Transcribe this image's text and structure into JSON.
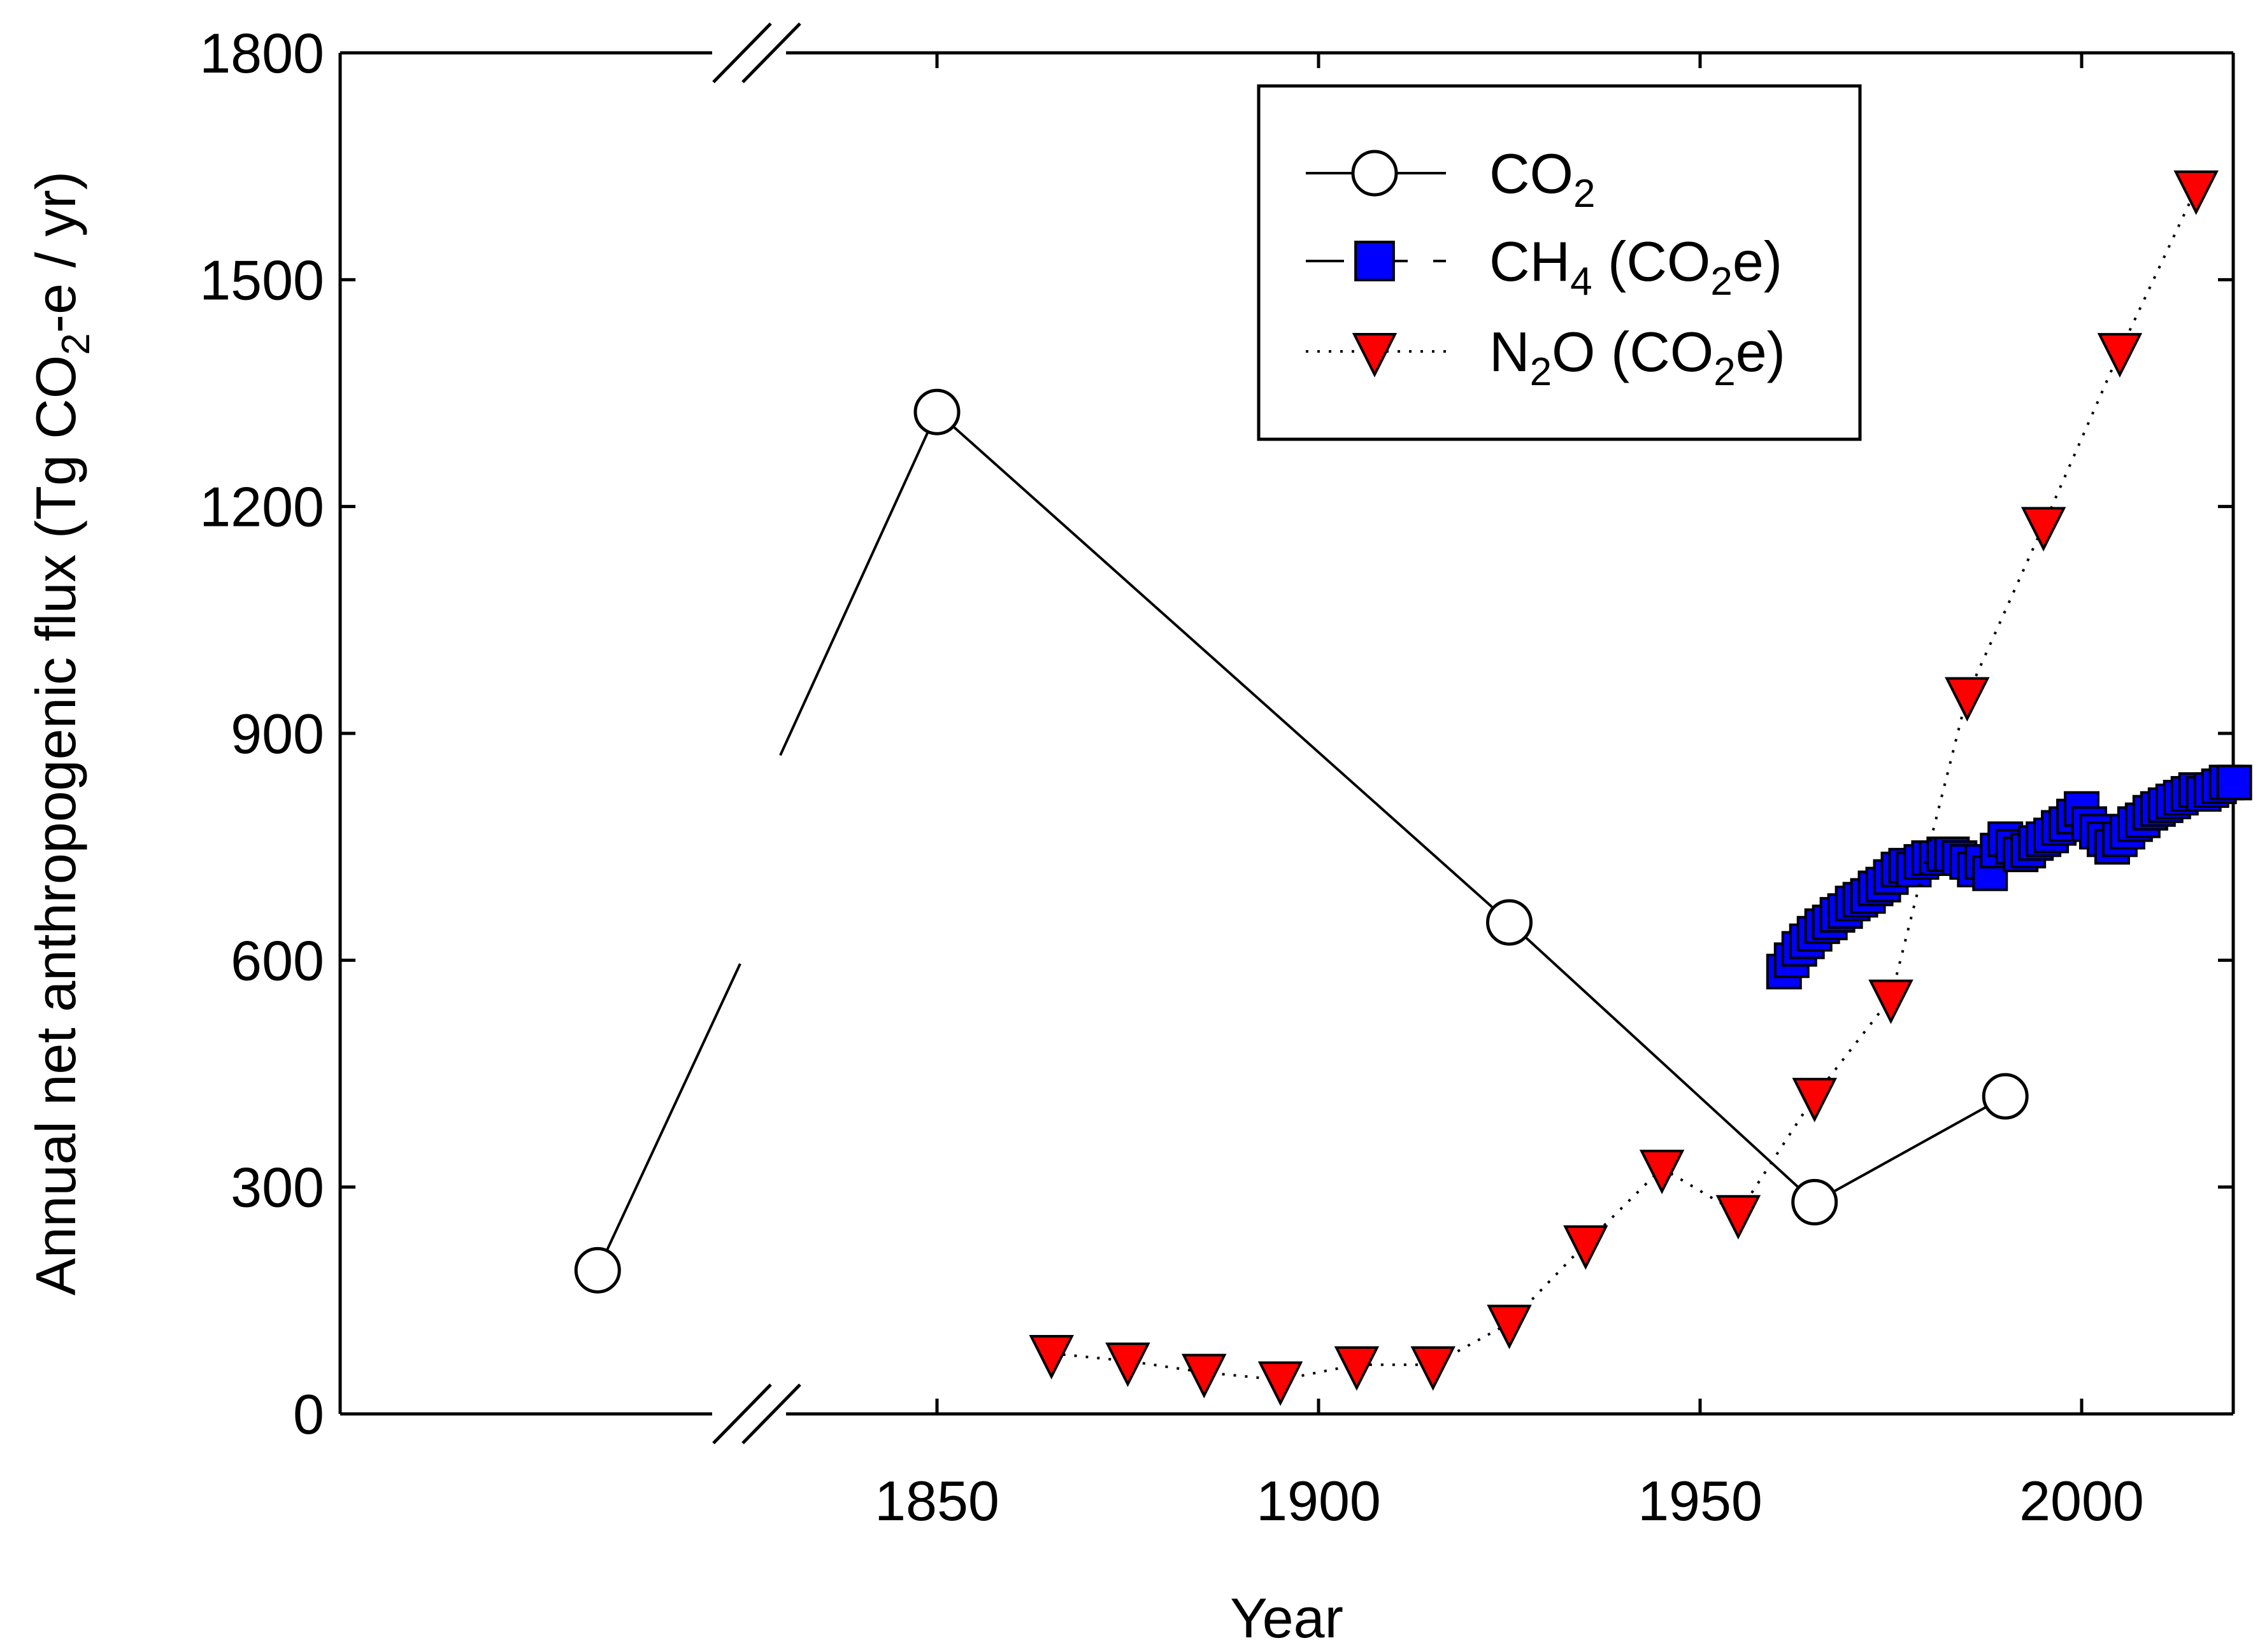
{
  "chart_data": {
    "type": "line",
    "title": "",
    "xlabel": "Year",
    "ylabel": {
      "main": "Annual net anthropogenic flux (Tg CO",
      "sub": "2",
      "tail": "-e / yr)"
    },
    "ylim": [
      0,
      1800
    ],
    "yticks": [
      0,
      300,
      600,
      900,
      1200,
      1500,
      1800
    ],
    "xlim": [
      1772.5,
      2020
    ],
    "xticks": [
      1850,
      1900,
      1950,
      2000
    ],
    "axis_break": {
      "start": 1795,
      "end": 1827
    },
    "series": [
      {
        "name": "CO2",
        "label": {
          "main": "CO",
          "sub": "2",
          "tail": ""
        },
        "marker": "circle",
        "line": "solid",
        "color": "#ffffff",
        "stroke": "#000000",
        "x": [
          1780,
          1850,
          1925,
          1965,
          1990
        ],
        "y": [
          190,
          1325,
          650,
          280,
          420
        ]
      },
      {
        "name": "CH4 (CO2e)",
        "label": {
          "main": "CH",
          "sub": "4",
          "tail": " (CO",
          "sub2": "2",
          "tail2": "e)"
        },
        "marker": "square",
        "line": "dashed",
        "color": "#0000ff",
        "stroke": "#000000",
        "x": [
          1961,
          1962,
          1963,
          1964,
          1965,
          1966,
          1967,
          1968,
          1969,
          1970,
          1971,
          1972,
          1973,
          1974,
          1975,
          1976,
          1977,
          1978,
          1979,
          1980,
          1981,
          1982,
          1983,
          1984,
          1985,
          1986,
          1987,
          1988,
          1989,
          1990,
          1991,
          1992,
          1993,
          1994,
          1995,
          1996,
          1997,
          1998,
          1999,
          2000,
          2001,
          2002,
          2003,
          2004,
          2005,
          2006,
          2007,
          2008,
          2009,
          2010,
          2011,
          2012,
          2013,
          2014,
          2015,
          2016,
          2017,
          2018,
          2019,
          2020
        ],
        "y": [
          585,
          600,
          615,
          625,
          635,
          645,
          650,
          660,
          665,
          675,
          680,
          685,
          695,
          700,
          710,
          720,
          725,
          720,
          730,
          735,
          735,
          740,
          740,
          735,
          730,
          720,
          730,
          715,
          745,
          760,
          750,
          740,
          745,
          755,
          760,
          765,
          775,
          780,
          790,
          800,
          780,
          770,
          760,
          750,
          760,
          770,
          780,
          785,
          795,
          800,
          805,
          810,
          815,
          820,
          825,
          820,
          825,
          830,
          835,
          835
        ]
      },
      {
        "name": "N2O (CO2e)",
        "label": {
          "main": "N",
          "sub": "2",
          "tail": "O (CO",
          "sub2": "2",
          "tail2": "e)"
        },
        "marker": "triangle-down",
        "line": "dotted",
        "color": "#ff0000",
        "stroke": "#000000",
        "x": [
          1865,
          1875,
          1885,
          1895,
          1905,
          1915,
          1925,
          1935,
          1945,
          1955,
          1965,
          1975,
          1985,
          1995,
          2005,
          2015
        ],
        "y": [
          80,
          70,
          55,
          45,
          65,
          65,
          120,
          225,
          325,
          265,
          420,
          550,
          950,
          1175,
          1405,
          1620
        ]
      }
    ],
    "legend_position": "top-right"
  }
}
